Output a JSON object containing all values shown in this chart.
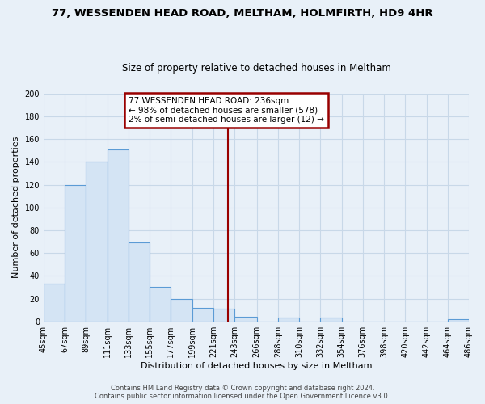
{
  "title": "77, WESSENDEN HEAD ROAD, MELTHAM, HOLMFIRTH, HD9 4HR",
  "subtitle": "Size of property relative to detached houses in Meltham",
  "xlabel": "Distribution of detached houses by size in Meltham",
  "ylabel": "Number of detached properties",
  "bar_color": "#d4e4f4",
  "bar_edge_color": "#5b9bd5",
  "background_color": "#e8f0f8",
  "grid_color": "#c8d8e8",
  "vline_x": 236,
  "vline_color": "#990000",
  "annotation_line1": "77 WESSENDEN HEAD ROAD: 236sqm",
  "annotation_line2": "← 98% of detached houses are smaller (578)",
  "annotation_line3": "2% of semi-detached houses are larger (12) →",
  "annotation_box_color": "#ffffff",
  "annotation_border_color": "#990000",
  "bins": [
    45,
    67,
    89,
    111,
    133,
    155,
    177,
    199,
    221,
    243,
    266,
    288,
    310,
    332,
    354,
    376,
    398,
    420,
    442,
    464,
    486
  ],
  "heights": [
    33,
    120,
    140,
    151,
    69,
    30,
    20,
    12,
    11,
    4,
    0,
    3,
    0,
    3,
    0,
    0,
    0,
    0,
    0,
    2
  ],
  "ylim": [
    0,
    200
  ],
  "yticks": [
    0,
    20,
    40,
    60,
    80,
    100,
    120,
    140,
    160,
    180,
    200
  ],
  "tick_labels": [
    "45sqm",
    "67sqm",
    "89sqm",
    "111sqm",
    "133sqm",
    "155sqm",
    "177sqm",
    "199sqm",
    "221sqm",
    "243sqm",
    "266sqm",
    "288sqm",
    "310sqm",
    "332sqm",
    "354sqm",
    "376sqm",
    "398sqm",
    "420sqm",
    "442sqm",
    "464sqm",
    "486sqm"
  ],
  "footer_text": "Contains HM Land Registry data © Crown copyright and database right 2024.\nContains public sector information licensed under the Open Government Licence v3.0.",
  "title_fontsize": 9.5,
  "subtitle_fontsize": 8.5,
  "axis_label_fontsize": 8,
  "tick_fontsize": 7,
  "footer_fontsize": 6,
  "annotation_fontsize": 7.5
}
